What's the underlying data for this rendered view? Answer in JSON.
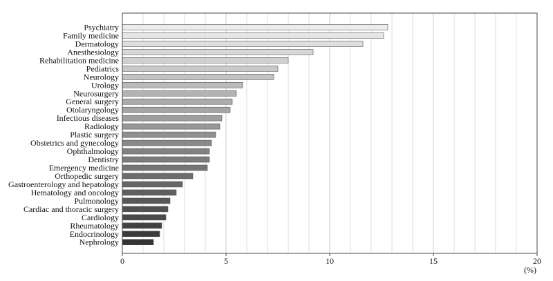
{
  "chart_data": {
    "type": "bar",
    "orientation": "horizontal",
    "categories": [
      "Psychiatry",
      "Family medicine",
      "Dermatology",
      "Anesthesiology",
      "Rehabilitation medicine",
      "Pediatrics",
      "Neurology",
      "Urology",
      "Neurosurgery",
      "General surgery",
      "Otolaryngology",
      "Infectious diseases",
      "Radiology",
      "Plastic surgery",
      "Obstetrics and gynecology",
      "Ophthalmology",
      "Dentistry",
      "Emergency medicine",
      "Orthopedic surgery",
      "Gastroenterology and hepatology",
      "Hematology and oncology",
      "Pulmonology",
      "Cardiac and thoracic surgery",
      "Cardiology",
      "Rheumatology",
      "Endocrinology",
      "Nephrology"
    ],
    "values": [
      12.8,
      12.6,
      11.6,
      9.2,
      8.0,
      7.5,
      7.3,
      5.8,
      5.5,
      5.3,
      5.2,
      4.8,
      4.7,
      4.5,
      4.3,
      4.2,
      4.2,
      4.1,
      3.4,
      2.9,
      2.6,
      2.3,
      2.2,
      2.1,
      1.9,
      1.8,
      1.5
    ],
    "xlim": [
      0,
      20
    ],
    "xticks": [
      0,
      5,
      10,
      15,
      20
    ],
    "xunit": "(%)",
    "grid": "vertical-every-1",
    "bar_shade": "light-to-dark gray from top to bottom"
  }
}
